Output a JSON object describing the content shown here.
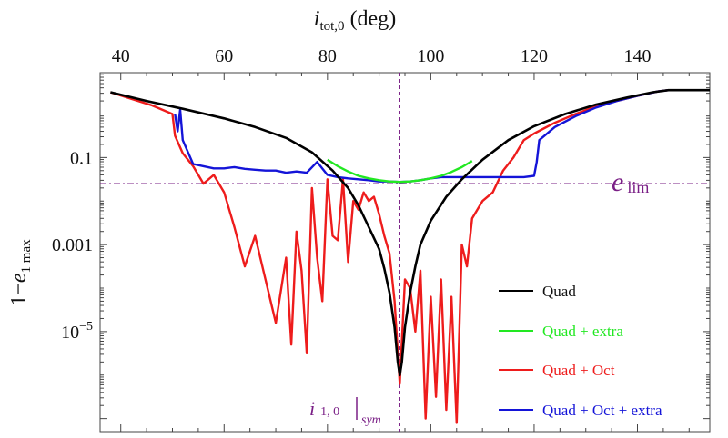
{
  "chart_data": {
    "type": "line",
    "title": "",
    "xlabel": {
      "main": "i",
      "sub": "tot,0",
      "unit": " (deg)"
    },
    "ylabel": {
      "prefix": "1−",
      "main": "e",
      "sub": "1 max"
    },
    "xlim": [
      36,
      154
    ],
    "ylim_log10": [
      -7.3,
      0.95
    ],
    "xscale": "linear",
    "yscale": "log",
    "x_ticks": [
      "40",
      "60",
      "80",
      "100",
      "120",
      "140"
    ],
    "x_tick_values": [
      40,
      60,
      80,
      100,
      120,
      140
    ],
    "y_ticks": [
      {
        "label": "0.1",
        "log10": -1
      },
      {
        "label": "0.001",
        "log10": -3
      },
      {
        "label": "10",
        "sup": "−5",
        "log10": -5
      }
    ],
    "reference_lines": {
      "e_lim": {
        "log10": -1.6,
        "label": "e",
        "sub": "lim",
        "color": "#7a1f86"
      },
      "i_sym": {
        "x": 94,
        "label": "i",
        "sub": "1, 0",
        "suffix": "sym",
        "color": "#7a1f86"
      }
    },
    "legend_position": "lower-right",
    "series": [
      {
        "name": "Quad",
        "color": "#000000",
        "x": [
          38,
          45,
          52,
          60,
          66,
          72,
          77,
          81,
          84,
          86,
          88,
          90,
          91,
          92,
          93,
          93.6,
          94,
          94.4,
          95,
          96,
          97,
          98,
          100,
          103,
          106,
          110,
          115,
          120,
          126,
          132,
          138,
          143,
          146,
          150,
          154
        ],
        "y_log10": [
          0.5,
          0.3,
          0.12,
          -0.1,
          -0.3,
          -0.55,
          -0.88,
          -1.3,
          -1.7,
          -2.1,
          -2.6,
          -3.1,
          -3.55,
          -4.1,
          -4.9,
          -5.7,
          -6.0,
          -5.7,
          -4.9,
          -4.1,
          -3.5,
          -3.0,
          -2.45,
          -1.9,
          -1.5,
          -1.05,
          -0.6,
          -0.28,
          0.0,
          0.22,
          0.38,
          0.5,
          0.55,
          0.55,
          0.55
        ]
      },
      {
        "name": "Quad + extra",
        "color": "#22e822",
        "x": [
          80,
          82,
          84,
          86,
          88,
          90,
          92,
          94,
          96,
          98,
          100,
          102,
          104,
          106,
          108
        ],
        "y_log10": [
          -1.05,
          -1.2,
          -1.32,
          -1.42,
          -1.48,
          -1.52,
          -1.55,
          -1.56,
          -1.55,
          -1.52,
          -1.48,
          -1.42,
          -1.33,
          -1.22,
          -1.08
        ]
      },
      {
        "name": "Quad + Oct",
        "color": "#ee1c1c",
        "x": [
          38,
          42,
          46,
          50,
          50.5,
          52,
          54,
          56,
          58,
          60,
          62,
          64,
          66,
          68,
          70,
          72,
          73,
          74,
          75,
          76,
          77,
          78,
          79,
          80,
          81,
          82,
          83,
          84,
          85,
          86,
          87,
          88,
          89,
          90,
          91,
          92,
          93,
          94,
          95,
          96,
          97,
          98,
          99,
          100,
          101,
          102,
          103,
          104,
          105,
          106,
          107,
          108,
          110,
          112,
          114,
          116,
          118,
          120,
          124,
          128,
          132,
          136,
          140,
          144,
          146,
          150,
          154
        ],
        "y_log10": [
          0.5,
          0.35,
          0.2,
          0.0,
          -0.5,
          -0.9,
          -1.2,
          -1.6,
          -1.4,
          -1.8,
          -2.6,
          -3.5,
          -2.8,
          -3.8,
          -4.8,
          -3.3,
          -5.3,
          -2.7,
          -3.6,
          -5.5,
          -1.7,
          -3.3,
          -4.3,
          -1.5,
          -2.8,
          -2.9,
          -1.5,
          -3.4,
          -2.0,
          -2.2,
          -1.8,
          -2.0,
          -1.9,
          -2.3,
          -2.8,
          -3.2,
          -4.3,
          -6.2,
          -3.8,
          -4.0,
          -5.0,
          -3.6,
          -7.0,
          -4.2,
          -6.5,
          -3.8,
          -6.8,
          -4.2,
          -7.1,
          -3.0,
          -3.5,
          -2.4,
          -2.0,
          -1.8,
          -1.3,
          -1.0,
          -0.6,
          -0.45,
          -0.2,
          0.0,
          0.18,
          0.3,
          0.42,
          0.52,
          0.55,
          0.55,
          0.55
        ]
      },
      {
        "name": "Quad + Oct + extra",
        "color": "#1414d8",
        "x": [
          50.5,
          51,
          51.5,
          52,
          54,
          56,
          58,
          60,
          62,
          64,
          66,
          68,
          70,
          72,
          74,
          76,
          78,
          80,
          82,
          84,
          86,
          88,
          90,
          92,
          94,
          96,
          98,
          100,
          102,
          104,
          106,
          108,
          110,
          112,
          114,
          116,
          118,
          120,
          120.5,
          121,
          122,
          124,
          128,
          132,
          136,
          140,
          144,
          146,
          150,
          154
        ],
        "y_log10": [
          0.0,
          -0.4,
          0.1,
          -0.6,
          -1.15,
          -1.2,
          -1.25,
          -1.25,
          -1.22,
          -1.26,
          -1.28,
          -1.3,
          -1.3,
          -1.35,
          -1.32,
          -1.35,
          -1.1,
          -1.4,
          -1.45,
          -1.48,
          -1.5,
          -1.52,
          -1.55,
          -1.55,
          -1.56,
          -1.55,
          -1.52,
          -1.48,
          -1.45,
          -1.45,
          -1.45,
          -1.45,
          -1.45,
          -1.45,
          -1.45,
          -1.45,
          -1.45,
          -1.42,
          -1.1,
          -0.6,
          -0.5,
          -0.3,
          -0.05,
          0.15,
          0.3,
          0.42,
          0.52,
          0.55,
          0.55,
          0.55
        ]
      }
    ]
  }
}
